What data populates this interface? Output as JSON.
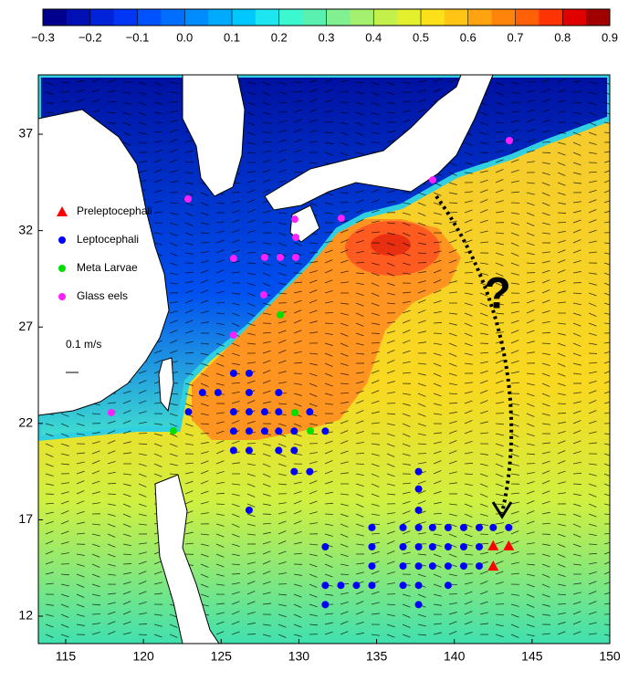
{
  "colorbar": {
    "clim": [
      -0.3,
      0.9
    ],
    "colors": [
      "#00008c",
      "#0010b4",
      "#0022d8",
      "#0036f4",
      "#0052ff",
      "#006eff",
      "#008cff",
      "#00aaff",
      "#00c8ff",
      "#1ee6f0",
      "#3cf8d0",
      "#5af0b0",
      "#80f090",
      "#a4f070",
      "#c4f04c",
      "#e2f02e",
      "#fce01a",
      "#ffc414",
      "#ffa410",
      "#ff840c",
      "#ff6008",
      "#ff3404",
      "#e00000",
      "#a00000"
    ],
    "ticks": [
      {
        "value": -0.3,
        "label": "−0.3"
      },
      {
        "value": -0.2,
        "label": "−0.2"
      },
      {
        "value": -0.1,
        "label": "−0.1"
      },
      {
        "value": 0,
        "label": "0.0"
      },
      0.1,
      0.2,
      0.3,
      0.4,
      0.5,
      0.6,
      0.7,
      0.8,
      0.9
    ]
  },
  "map": {
    "xlim": [
      113.24,
      150
    ],
    "ylim": [
      10.58,
      40.08
    ],
    "xticks": [
      115,
      120,
      125,
      130,
      135,
      140,
      145,
      150
    ],
    "yticks": [
      12,
      17,
      22,
      27,
      32,
      37
    ]
  },
  "groups": [
    {
      "name": "Preleptocephali",
      "color": "#ff0000",
      "marker": "triangle",
      "lon": [
        142.5,
        143.5,
        142.5
      ],
      "lat": [
        15.65,
        15.65,
        14.6
      ]
    },
    {
      "name": "Leptocephali",
      "color": "#0000ff",
      "marker": "circle",
      "lon": [
        125.8,
        126.8,
        123.8,
        124.8,
        126.8,
        128.7,
        122.9,
        125.8,
        126.8,
        127.8,
        128.7,
        130.7,
        125.8,
        126.8,
        127.8,
        128.7,
        129.7,
        131.7,
        125.8,
        126.8,
        128.7,
        129.7,
        129.7,
        130.7,
        137.7,
        137.7,
        126.8,
        137.7,
        134.7,
        136.7,
        137.7,
        138.6,
        139.6,
        140.6,
        141.6,
        142.5,
        143.5,
        131.7,
        134.7,
        136.7,
        137.7,
        138.6,
        139.6,
        140.6,
        141.6,
        134.7,
        136.7,
        137.7,
        138.6,
        139.6,
        140.6,
        141.6,
        131.7,
        132.7,
        133.7,
        134.7,
        136.7,
        137.7,
        139.6,
        131.7,
        137.7
      ],
      "lat": [
        24.6,
        24.6,
        23.6,
        23.6,
        23.6,
        23.6,
        22.6,
        22.6,
        22.6,
        22.6,
        22.6,
        22.6,
        21.6,
        21.6,
        21.6,
        21.6,
        21.6,
        21.6,
        20.6,
        20.6,
        20.6,
        20.6,
        19.5,
        19.5,
        19.5,
        18.6,
        17.5,
        17.5,
        16.6,
        16.6,
        16.6,
        16.6,
        16.6,
        16.6,
        16.6,
        16.6,
        16.6,
        15.6,
        15.6,
        15.6,
        15.6,
        15.6,
        15.6,
        15.6,
        15.6,
        14.6,
        14.6,
        14.6,
        14.6,
        14.6,
        14.6,
        14.6,
        13.6,
        13.6,
        13.6,
        13.6,
        13.6,
        13.6,
        13.6,
        12.6,
        12.6
      ]
    },
    {
      "name": "Meta Larvae",
      "color": "#00e000",
      "marker": "circle",
      "lon": [
        128.8,
        129.74,
        130.74,
        121.93
      ],
      "lat": [
        27.63,
        22.56,
        21.61,
        21.61
      ]
    },
    {
      "name": "Glass eels",
      "color": "#ff20ff",
      "marker": "circle",
      "lon": [
        143.54,
        122.87,
        138.61,
        129.74,
        132.73,
        125.8,
        127.8,
        128.8,
        129.8,
        129.8,
        127.74,
        125.8,
        117.94
      ],
      "lat": [
        36.67,
        33.64,
        34.63,
        32.59,
        32.64,
        30.56,
        30.61,
        30.61,
        30.61,
        31.65,
        28.67,
        26.58,
        22.56
      ]
    }
  ],
  "annotations": {
    "scale": "0.1 m/s",
    "question": "?"
  }
}
